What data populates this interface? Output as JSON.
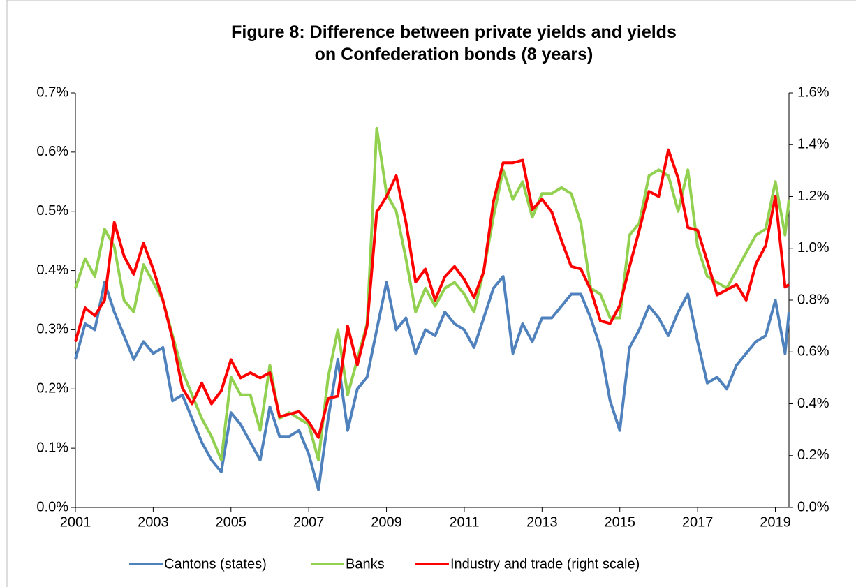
{
  "chart_data": {
    "type": "line",
    "title": "Figure 8: Difference between private yields and yields on Confederation bonds (8 years)",
    "x": [
      2001,
      2001.25,
      2001.5,
      2001.75,
      2002,
      2002.25,
      2002.5,
      2002.75,
      2003,
      2003.25,
      2003.5,
      2003.75,
      2004,
      2004.25,
      2004.5,
      2004.75,
      2005,
      2005.25,
      2005.5,
      2005.75,
      2006,
      2006.25,
      2006.5,
      2006.75,
      2007,
      2007.25,
      2007.5,
      2007.75,
      2008,
      2008.25,
      2008.5,
      2008.75,
      2009,
      2009.25,
      2009.5,
      2009.75,
      2010,
      2010.25,
      2010.5,
      2010.75,
      2011,
      2011.25,
      2011.5,
      2011.75,
      2012,
      2012.25,
      2012.5,
      2012.75,
      2013,
      2013.25,
      2013.5,
      2013.75,
      2014,
      2014.25,
      2014.5,
      2014.75,
      2015,
      2015.25,
      2015.5,
      2015.75,
      2016,
      2016.25,
      2016.5,
      2016.75,
      2017,
      2017.25,
      2017.5,
      2017.75,
      2018,
      2018.25,
      2018.5,
      2018.75,
      2019,
      2019.25,
      2019.35
    ],
    "series": [
      {
        "name": "Cantons (states)",
        "color": "#4f81bd",
        "axis": "y",
        "values": [
          0.25,
          0.31,
          0.3,
          0.38,
          0.33,
          0.29,
          0.25,
          0.28,
          0.26,
          0.27,
          0.18,
          0.19,
          0.15,
          0.11,
          0.08,
          0.06,
          0.16,
          0.14,
          0.11,
          0.08,
          0.17,
          0.12,
          0.12,
          0.13,
          0.09,
          0.03,
          0.15,
          0.25,
          0.13,
          0.2,
          0.22,
          0.3,
          0.38,
          0.3,
          0.32,
          0.26,
          0.3,
          0.29,
          0.33,
          0.31,
          0.3,
          0.27,
          0.32,
          0.37,
          0.39,
          0.26,
          0.31,
          0.28,
          0.32,
          0.32,
          0.34,
          0.36,
          0.36,
          0.32,
          0.27,
          0.18,
          0.13,
          0.27,
          0.3,
          0.34,
          0.32,
          0.29,
          0.33,
          0.36,
          0.28,
          0.21,
          0.22,
          0.2,
          0.24,
          0.26,
          0.28,
          0.29,
          0.35,
          0.26,
          0.33
        ]
      },
      {
        "name": "Banks",
        "color": "#92d050",
        "axis": "y",
        "values": [
          0.37,
          0.42,
          0.39,
          0.47,
          0.44,
          0.35,
          0.33,
          0.41,
          0.38,
          0.35,
          0.29,
          0.23,
          0.19,
          0.15,
          0.12,
          0.08,
          0.22,
          0.19,
          0.19,
          0.13,
          0.24,
          0.15,
          0.16,
          0.15,
          0.14,
          0.08,
          0.22,
          0.3,
          0.19,
          0.25,
          0.31,
          0.64,
          0.53,
          0.5,
          0.42,
          0.33,
          0.37,
          0.34,
          0.37,
          0.38,
          0.36,
          0.33,
          0.4,
          0.49,
          0.57,
          0.52,
          0.55,
          0.49,
          0.53,
          0.53,
          0.54,
          0.53,
          0.48,
          0.37,
          0.36,
          0.32,
          0.32,
          0.46,
          0.48,
          0.56,
          0.57,
          0.56,
          0.5,
          0.57,
          0.44,
          0.39,
          0.38,
          0.37,
          0.4,
          0.43,
          0.46,
          0.47,
          0.55,
          0.46,
          0.52
        ]
      },
      {
        "name": "Industry and trade (right scale)",
        "color": "#ff0000",
        "axis": "y2",
        "values": [
          0.64,
          0.77,
          0.74,
          0.8,
          1.1,
          0.97,
          0.9,
          1.02,
          0.92,
          0.8,
          0.65,
          0.46,
          0.4,
          0.48,
          0.4,
          0.45,
          0.57,
          0.5,
          0.52,
          0.5,
          0.52,
          0.35,
          0.36,
          0.37,
          0.33,
          0.27,
          0.42,
          0.43,
          0.7,
          0.55,
          0.7,
          1.14,
          1.2,
          1.28,
          1.1,
          0.87,
          0.92,
          0.8,
          0.89,
          0.93,
          0.88,
          0.81,
          0.91,
          1.18,
          1.33,
          1.33,
          1.34,
          1.15,
          1.19,
          1.14,
          1.03,
          0.93,
          0.92,
          0.84,
          0.72,
          0.71,
          0.78,
          0.93,
          1.07,
          1.22,
          1.2,
          1.38,
          1.27,
          1.08,
          1.07,
          0.95,
          0.82,
          0.84,
          0.86,
          0.8,
          0.94,
          1.01,
          1.2,
          0.85,
          0.86
        ]
      }
    ],
    "xlim": [
      2001,
      2019.35
    ],
    "xticks": [
      2001,
      2003,
      2005,
      2007,
      2009,
      2011,
      2013,
      2015,
      2017,
      2019
    ],
    "ylim": [
      0,
      0.7
    ],
    "yticks": [
      {
        "value": 0,
        "label": "0.0%"
      },
      {
        "value": 0.1,
        "label": "0.1%"
      },
      {
        "value": 0.2,
        "label": "0.2%"
      },
      {
        "value": 0.3,
        "label": "0.3%"
      },
      {
        "value": 0.4,
        "label": "0.4%"
      },
      {
        "value": 0.5,
        "label": "0.5%"
      },
      {
        "value": 0.6,
        "label": "0.6%"
      },
      {
        "value": 0.7,
        "label": "0.7%"
      }
    ],
    "y2lim": [
      0,
      1.6
    ],
    "y2ticks": [
      {
        "value": 0,
        "label": "0.0%"
      },
      {
        "value": 0.2,
        "label": "0.2%"
      },
      {
        "value": 0.4,
        "label": "0.4%"
      },
      {
        "value": 0.6,
        "label": "0.6%"
      },
      {
        "value": 0.8,
        "label": "0.8%"
      },
      {
        "value": 1.0,
        "label": "1.0%"
      },
      {
        "value": 1.2,
        "label": "1.2%"
      },
      {
        "value": 1.4,
        "label": "1.4%"
      },
      {
        "value": 1.6,
        "label": "1.6%"
      }
    ],
    "legend": "bottom"
  }
}
